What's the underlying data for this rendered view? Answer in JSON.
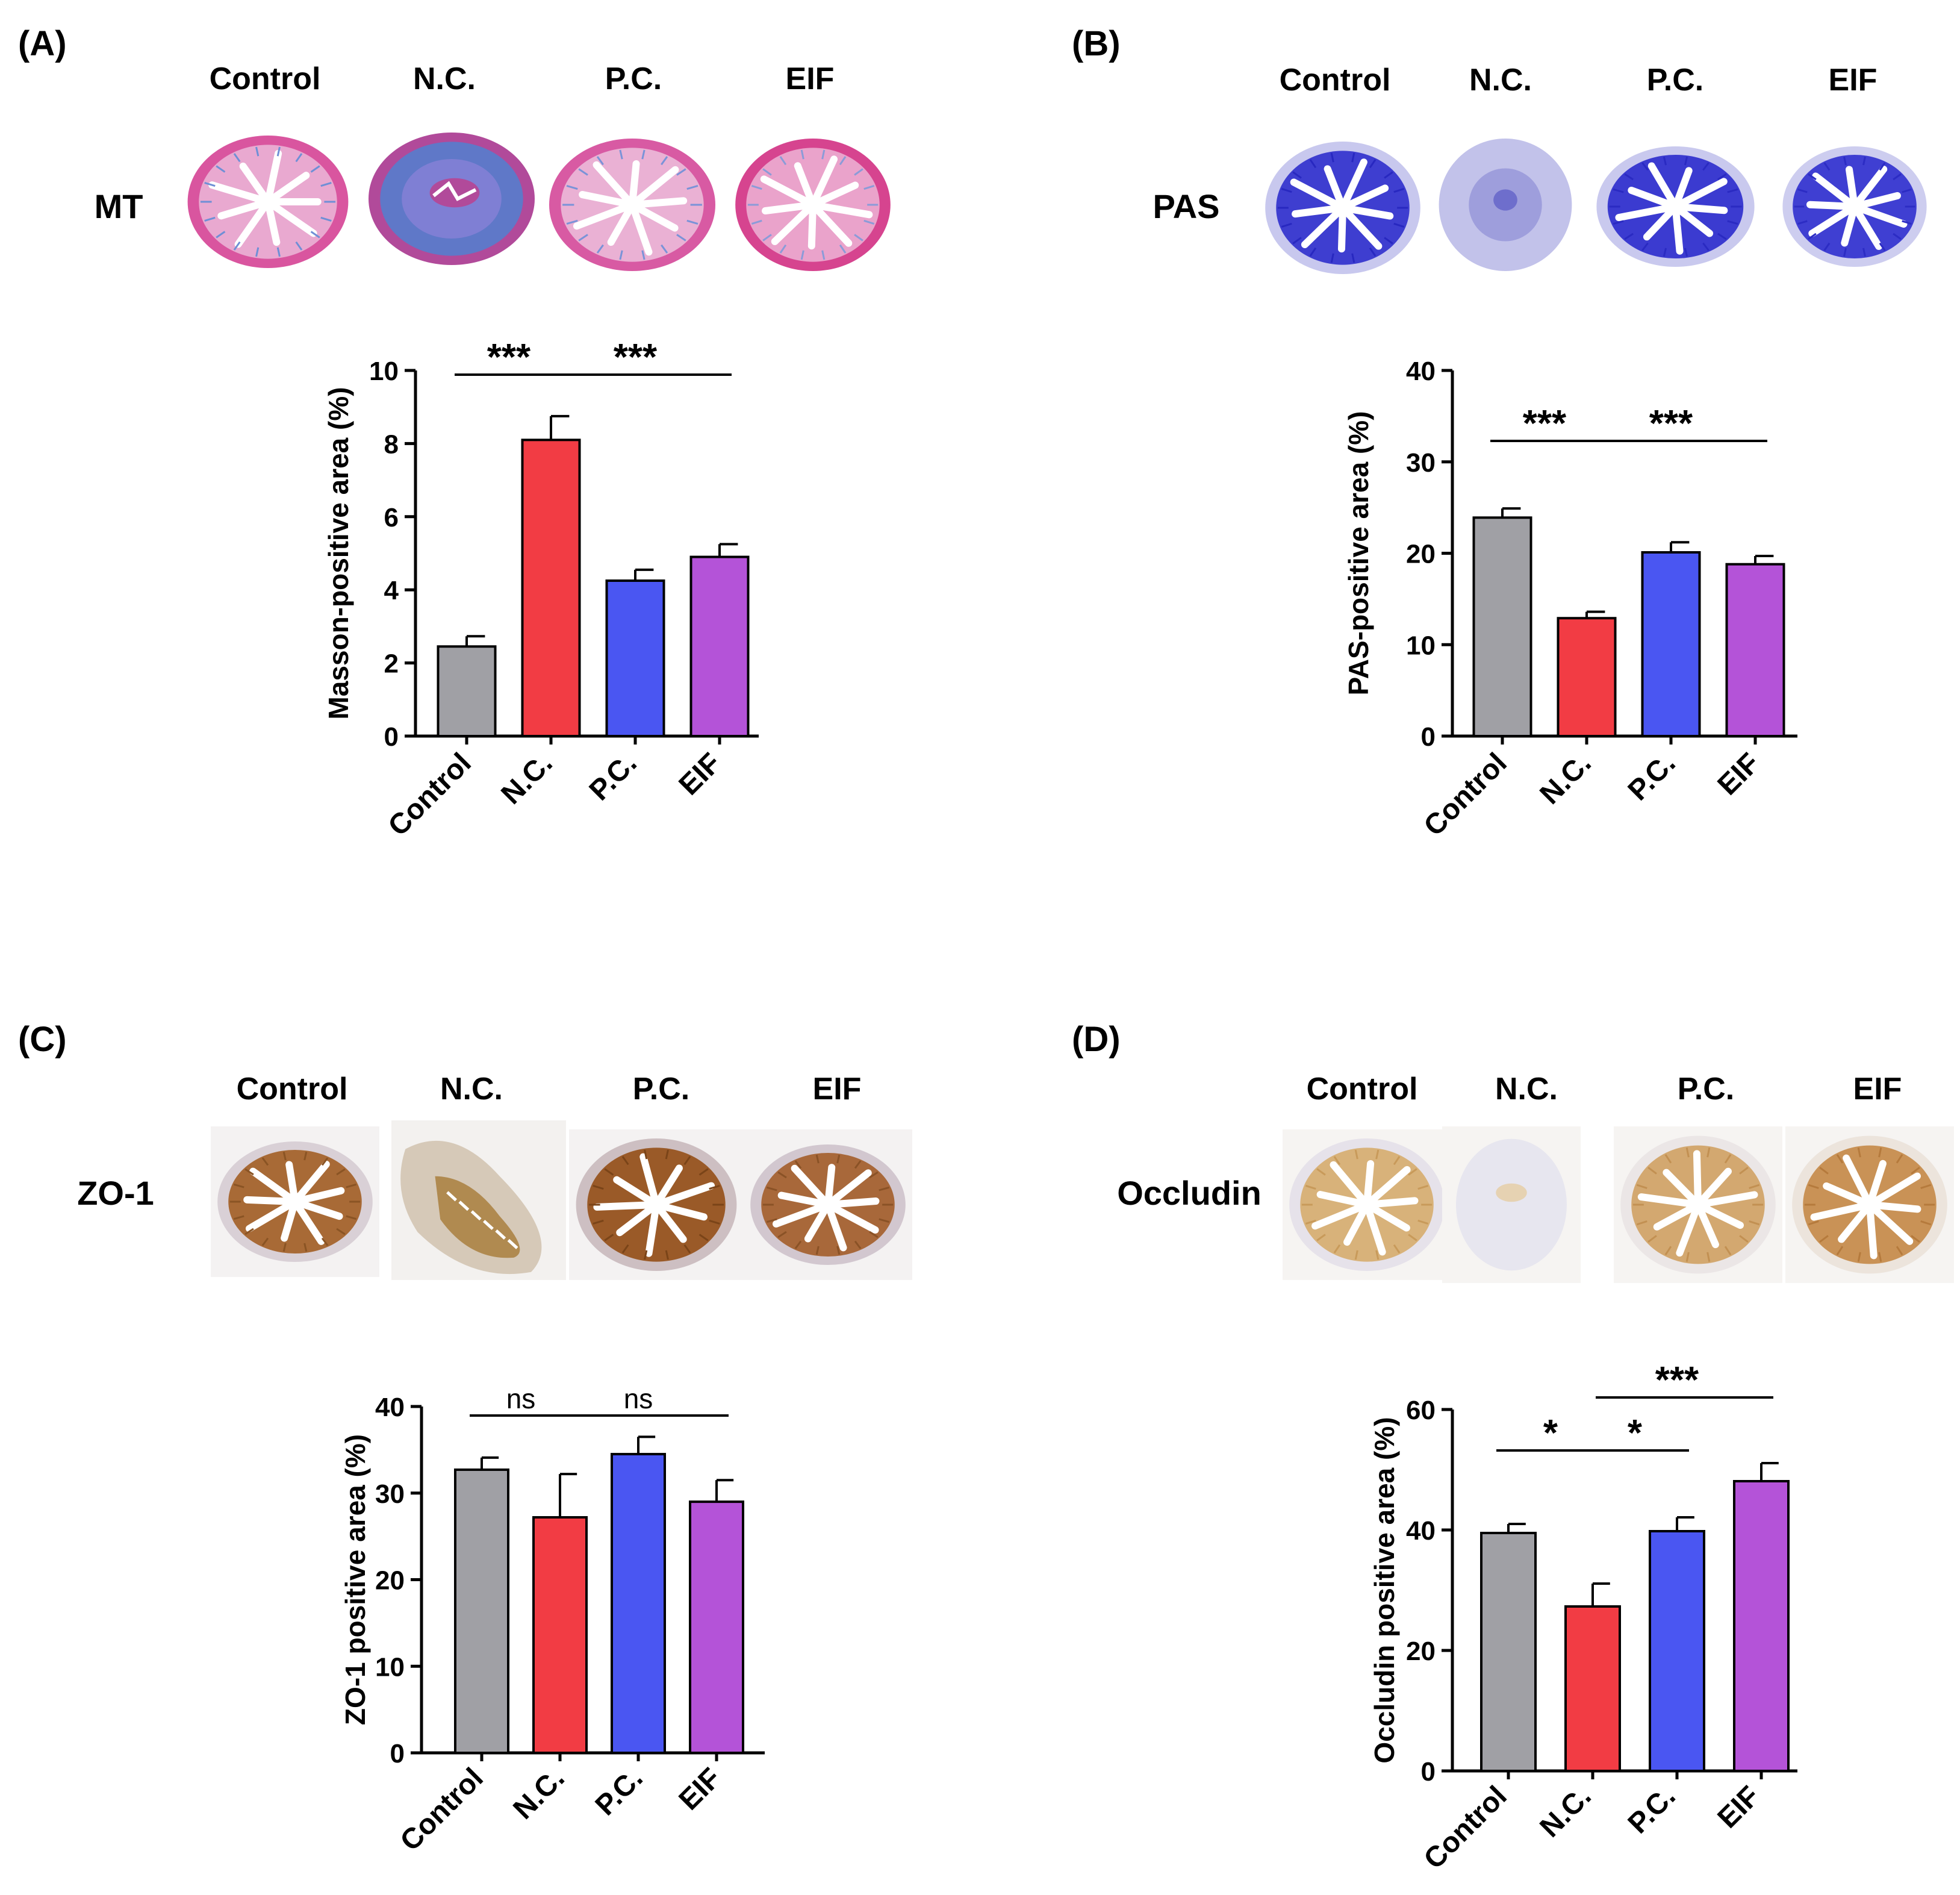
{
  "panels": [
    {
      "id": "A",
      "label": "(A)",
      "stain": "MT",
      "image_headers": [
        "Control",
        "N.C.",
        "P.C.",
        "EIF"
      ],
      "thumbs": [
        {
          "style": "mt",
          "bg": "#ffffff",
          "wall": "#d9559f",
          "wall_inner": "#e9a9d0",
          "lumen": "#ffffff",
          "accent": "#6f8fd6",
          "shape": "round"
        },
        {
          "style": "mt-fib",
          "bg": "#ffffff",
          "wall": "#b14a9a",
          "wall_inner": "#7f7fd4",
          "lumen": "#ffffff",
          "accent": "#5f78c8",
          "shape": "round"
        },
        {
          "style": "mt",
          "bg": "#ffffff",
          "wall": "#d85aa3",
          "wall_inner": "#eab1d4",
          "lumen": "#ffffff",
          "accent": "#7a93d8",
          "shape": "round"
        },
        {
          "style": "mt",
          "bg": "#ffffff",
          "wall": "#d6448f",
          "wall_inner": "#eaa3cb",
          "lumen": "#ffffff",
          "accent": "#8b9bd8",
          "shape": "round"
        }
      ],
      "chart_data": {
        "type": "bar",
        "categories": [
          "Control",
          "N.C.",
          "P.C.",
          "EIF"
        ],
        "values": [
          2.45,
          8.1,
          4.25,
          4.9
        ],
        "errors": [
          0.28,
          0.65,
          0.3,
          0.35
        ],
        "colors": [
          "#a0a0a5",
          "#f23c44",
          "#4a56f2",
          "#b453d8"
        ],
        "ylabel": "Masson-positive area (%)",
        "ylim": [
          0,
          10
        ],
        "yticks": [
          0,
          2,
          4,
          6,
          8,
          10
        ],
        "significance": [
          {
            "from": 0,
            "to": 1,
            "text": "***"
          },
          {
            "from": 1,
            "to": 3,
            "text": "***"
          }
        ]
      }
    },
    {
      "id": "B",
      "label": "(B)",
      "stain": "PAS",
      "image_headers": [
        "Control",
        "N.C.",
        "P.C.",
        "EIF"
      ],
      "thumbs": [
        {
          "style": "pas",
          "bg": "#ffffff",
          "wall": "#c8c8ee",
          "wall_inner": "#3e3ed0",
          "lumen": "#ffffff",
          "accent": "#2828c0",
          "shape": "round"
        },
        {
          "style": "pas-nc",
          "bg": "#ffffff",
          "wall": "#c2c2ea",
          "wall_inner": "#9e9edc",
          "lumen": "#6e6ecc",
          "accent": "#5656c4",
          "shape": "round"
        },
        {
          "style": "pas",
          "bg": "#ffffff",
          "wall": "#c9c9ee",
          "wall_inner": "#3b3bd0",
          "lumen": "#ffffff",
          "accent": "#2a2ac2",
          "shape": "oval"
        },
        {
          "style": "pas",
          "bg": "#ffffff",
          "wall": "#cdcdef",
          "wall_inner": "#3f3fd2",
          "lumen": "#ffffff",
          "accent": "#2c2cc4",
          "shape": "oval"
        }
      ],
      "chart_data": {
        "type": "bar",
        "categories": [
          "Control",
          "N.C.",
          "P.C.",
          "EIF"
        ],
        "values": [
          23.9,
          12.9,
          20.1,
          18.8
        ],
        "errors": [
          1.0,
          0.7,
          1.1,
          0.9
        ],
        "colors": [
          "#a0a0a5",
          "#f23c44",
          "#4a56f2",
          "#b453d8"
        ],
        "ylabel": "PAS-positive area (%)",
        "ylim": [
          0,
          40
        ],
        "yticks": [
          0,
          10,
          20,
          30,
          40
        ],
        "significance": [
          {
            "from": 0,
            "to": 1,
            "text": "***"
          },
          {
            "from": 1,
            "to": 3,
            "text": "***"
          }
        ]
      }
    },
    {
      "id": "C",
      "label": "(C)",
      "stain": "ZO-1",
      "image_headers": [
        "Control",
        "N.C.",
        "P.C.",
        "EIF"
      ],
      "thumbs": [
        {
          "style": "ihc",
          "bg": "#f4f2f2",
          "wall": "#d9d0d6",
          "wall_inner": "#a86a36",
          "lumen": "#ffffff",
          "accent": "#8a5424",
          "shape": "oval"
        },
        {
          "style": "ihc-nc",
          "bg": "#f3f1ef",
          "wall": "#d6c9b8",
          "wall_inner": "#b08a50",
          "lumen": "#ffffff",
          "accent": "#8a6a32",
          "shape": "crescent"
        },
        {
          "style": "ihc",
          "bg": "#f4f2f2",
          "wall": "#cdbfc2",
          "wall_inner": "#9a5a28",
          "lumen": "#ffffff",
          "accent": "#7a4418",
          "shape": "round"
        },
        {
          "style": "ihc",
          "bg": "#f4f2f2",
          "wall": "#d2c7cf",
          "wall_inner": "#a8683a",
          "lumen": "#ffffff",
          "accent": "#8a5226",
          "shape": "oval"
        }
      ],
      "chart_data": {
        "type": "bar",
        "categories": [
          "Control",
          "N.C.",
          "P.C.",
          "EIF"
        ],
        "values": [
          32.7,
          27.2,
          34.5,
          29.0
        ],
        "errors": [
          1.4,
          5.0,
          2.0,
          2.5
        ],
        "colors": [
          "#a0a0a5",
          "#f23c44",
          "#4a56f2",
          "#b453d8"
        ],
        "ylabel": "ZO-1 positive area (%)",
        "ylim": [
          0,
          40
        ],
        "yticks": [
          0,
          10,
          20,
          30,
          40
        ],
        "significance": [
          {
            "from": 0,
            "to": 1,
            "text": "ns"
          },
          {
            "from": 1,
            "to": 3,
            "text": "ns"
          }
        ]
      }
    },
    {
      "id": "D",
      "label": "(D)",
      "stain": "Occludin",
      "image_headers": [
        "Control",
        "N.C.",
        "P.C.",
        "EIF"
      ],
      "thumbs": [
        {
          "style": "ihc",
          "bg": "#f6f4f2",
          "wall": "#e6e2ea",
          "wall_inner": "#d8b27a",
          "lumen": "#ffffff",
          "accent": "#c89a5a",
          "shape": "round"
        },
        {
          "style": "ihc-small",
          "bg": "#f6f4f2",
          "wall": "#e7e6ef",
          "wall_inner": "#e6d2b2",
          "lumen": "#ffffff",
          "accent": "#d2b078",
          "shape": "round"
        },
        {
          "style": "ihc",
          "bg": "#f6f4f2",
          "wall": "#ebe6e6",
          "wall_inner": "#d3a870",
          "lumen": "#ffffff",
          "accent": "#c29052",
          "shape": "round"
        },
        {
          "style": "ihc",
          "bg": "#f6f4f2",
          "wall": "#ece4dc",
          "wall_inner": "#c99256",
          "lumen": "#ffffff",
          "accent": "#b57a3c",
          "shape": "round"
        }
      ],
      "chart_data": {
        "type": "bar",
        "categories": [
          "Control",
          "N.C.",
          "P.C.",
          "EIF"
        ],
        "values": [
          39.5,
          27.3,
          39.8,
          48.1
        ],
        "errors": [
          1.5,
          3.8,
          2.3,
          3.0
        ],
        "colors": [
          "#a0a0a5",
          "#f23c44",
          "#4a56f2",
          "#b453d8"
        ],
        "ylabel": "Occludin positive area (%)",
        "ylim": [
          0,
          60
        ],
        "yticks": [
          0,
          20,
          40,
          60
        ],
        "significance": [
          {
            "from": 0,
            "to": 1,
            "text": "*"
          },
          {
            "from": 1,
            "to": 2,
            "text": "*"
          },
          {
            "from": 1,
            "to": 3,
            "text": "***"
          }
        ]
      }
    }
  ]
}
